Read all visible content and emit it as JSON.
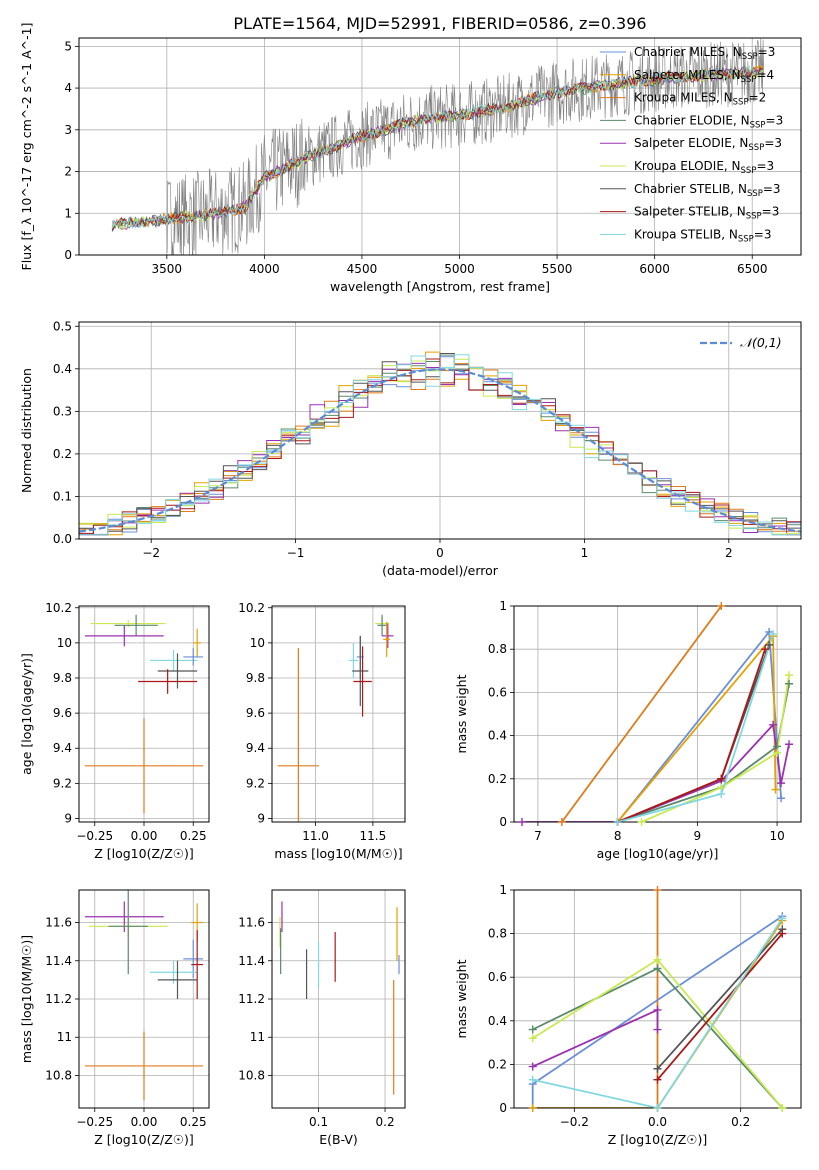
{
  "title": "PLATE=1564, MJD=52991, FIBERID=0586, z=0.396",
  "colors": {
    "Chabrier MILES": "#6a8fd8",
    "Salpeter MILES": "#e6a000",
    "Kroupa MILES": "#e07b1a",
    "Chabrier ELODIE": "#5a8a6a",
    "Salpeter ELODIE": "#9b30b0",
    "Kroupa ELODIE": "#c8ea50",
    "Chabrier STELIB": "#555555",
    "Salpeter STELIB": "#aa1818",
    "Kroupa STELIB": "#80d8e0",
    "data": "#808080",
    "gauss": "#5a8ad8"
  },
  "chart_data": [
    {
      "type": "line",
      "xlabel": "wavelength [Angstrom, rest frame]",
      "ylabel": "Flux [f_λ 10^-17 erg cm^-2 s^-1 A^-1]",
      "xlim": [
        3050,
        6750
      ],
      "ylim": [
        0,
        5.2
      ],
      "xticks": [
        3500,
        4000,
        4500,
        5000,
        5500,
        6000,
        6500
      ],
      "yticks": [
        0,
        1,
        2,
        3,
        4,
        5
      ],
      "legend_position": "upper-right",
      "legend": [
        {
          "model": "Chabrier MILES",
          "label": "Chabrier MILES, N",
          "sub": "SSP",
          "eq": "=3"
        },
        {
          "model": "Salpeter MILES",
          "label": "Salpeter MILES, N",
          "sub": "SSP",
          "eq": "=4"
        },
        {
          "model": "Kroupa MILES",
          "label": "Kroupa MILES, N",
          "sub": "SSP",
          "eq": "=2"
        },
        {
          "model": "Chabrier ELODIE",
          "label": "Chabrier ELODIE, N",
          "sub": "SSP",
          "eq": "=3"
        },
        {
          "model": "Salpeter ELODIE",
          "label": "Salpeter ELODIE, N",
          "sub": "SSP",
          "eq": "=3"
        },
        {
          "model": "Kroupa ELODIE",
          "label": "Kroupa ELODIE, N",
          "sub": "SSP",
          "eq": "=3"
        },
        {
          "model": "Chabrier STELIB",
          "label": "Chabrier STELIB, N",
          "sub": "SSP",
          "eq": "=3"
        },
        {
          "model": "Salpeter STELIB",
          "label": "Salpeter STELIB, N",
          "sub": "SSP",
          "eq": "=3"
        },
        {
          "model": "Kroupa STELIB",
          "label": "Kroupa STELIB, N",
          "sub": "SSP",
          "eq": "=3"
        }
      ],
      "data_x_range": [
        3220,
        6560
      ],
      "continuum": [
        [
          3220,
          0.72
        ],
        [
          3500,
          0.85
        ],
        [
          3700,
          0.95
        ],
        [
          3900,
          1.15
        ],
        [
          4000,
          1.85
        ],
        [
          4200,
          2.3
        ],
        [
          4500,
          2.85
        ],
        [
          4800,
          3.25
        ],
        [
          5000,
          3.35
        ],
        [
          5200,
          3.5
        ],
        [
          5500,
          3.9
        ],
        [
          5800,
          4.1
        ],
        [
          6000,
          4.2
        ],
        [
          6200,
          4.3
        ],
        [
          6560,
          4.4
        ]
      ]
    },
    {
      "type": "step",
      "xlabel": "(data-model)/error",
      "ylabel": "Normed distribution",
      "xlim": [
        -2.5,
        2.5
      ],
      "ylim": [
        0,
        0.51
      ],
      "xticks": [
        -2,
        -1,
        0,
        1,
        2
      ],
      "xticklabels": [
        "−2",
        "−1",
        "0",
        "1",
        "2"
      ],
      "yticks": [
        0.0,
        0.1,
        0.2,
        0.3,
        0.4,
        0.5
      ],
      "yticklabels": [
        "0.0",
        "0.1",
        "0.2",
        "0.3",
        "0.4",
        "0.5"
      ],
      "bin_width": 0.1,
      "legend": "𝒩(0,1)",
      "histogram_base": [
        0.03,
        0.032,
        0.035,
        0.04,
        0.045,
        0.05,
        0.06,
        0.07,
        0.085,
        0.1,
        0.12,
        0.13,
        0.145,
        0.16,
        0.17,
        0.19,
        0.21,
        0.24,
        0.26,
        0.28,
        0.3,
        0.33,
        0.36,
        0.35,
        0.33,
        0.36,
        0.35,
        0.33,
        0.4,
        0.37,
        0.38,
        0.37,
        0.39,
        0.4,
        0.37,
        0.38,
        0.36,
        0.35,
        0.33,
        0.36,
        0.32,
        0.3,
        0.28,
        0.25,
        0.22,
        0.21,
        0.19,
        0.17,
        0.155,
        0.14,
        0.12,
        0.1,
        0.085,
        0.075,
        0.06,
        0.05,
        0.045,
        0.04,
        0.04,
        0.035,
        0.03,
        0.03,
        0.03,
        0.03,
        0.03,
        0.03,
        0.03,
        0.03,
        0.03,
        0.03,
        0.03,
        0.03,
        0.03,
        0.03,
        0.03,
        0.03,
        0.03,
        0.03,
        0.03,
        0.03,
        0.03,
        0.03,
        0.03,
        0.03,
        0.03,
        0.03,
        0.03,
        0.03,
        0.03,
        0.03,
        0.03,
        0.03,
        0.03,
        0.03,
        0.03,
        0.03,
        0.03,
        0.03,
        0.03,
        0.03
      ]
    },
    {
      "type": "errorbar",
      "xlabel": "Z [log10(Z/Z☉)]",
      "ylabel": "age [log10(age/yr)]",
      "xlim": [
        -0.33,
        0.33
      ],
      "ylim": [
        8.98,
        10.21
      ],
      "xticks": [
        -0.25,
        0.0,
        0.25
      ],
      "xticklabels": [
        "−0.25",
        "0.00",
        "0.25"
      ],
      "yticks": [
        9.0,
        9.2,
        9.4,
        9.6,
        9.8,
        10.0,
        10.2
      ],
      "points": [
        {
          "model": "Kroupa MILES",
          "x": 0.0,
          "xerr": 0.3,
          "y": 9.3,
          "yerr": 0.27
        },
        {
          "model": "Kroupa ELODIE",
          "x": -0.08,
          "xerr": 0.19,
          "y": 10.11,
          "yerr": 0.02
        },
        {
          "model": "Chabrier ELODIE",
          "x": -0.04,
          "xerr": 0.11,
          "y": 10.1,
          "yerr": 0.06
        },
        {
          "model": "Salpeter ELODIE",
          "x": -0.1,
          "xerr": 0.2,
          "y": 10.04,
          "yerr": 0.06
        },
        {
          "model": "Salpeter MILES",
          "x": 0.27,
          "xerr": 0.02,
          "y": 10.0,
          "yerr": 0.08
        },
        {
          "model": "Kroupa STELIB",
          "x": 0.15,
          "xerr": 0.12,
          "y": 9.9,
          "yerr": 0.06
        },
        {
          "model": "Chabrier MILES",
          "x": 0.25,
          "xerr": 0.05,
          "y": 9.92,
          "yerr": 0.05
        },
        {
          "model": "Chabrier STELIB",
          "x": 0.17,
          "xerr": 0.1,
          "y": 9.84,
          "yerr": 0.1
        },
        {
          "model": "Salpeter STELIB",
          "x": 0.12,
          "xerr": 0.15,
          "y": 9.78,
          "yerr": 0.07
        }
      ]
    },
    {
      "type": "errorbar",
      "xlabel": "mass [log10(M/M☉)]",
      "ylabel": "",
      "xlim": [
        10.62,
        11.78
      ],
      "ylim": [
        8.98,
        10.21
      ],
      "xticks": [
        11.0,
        11.5
      ],
      "xticklabels": [
        "11.0",
        "11.5"
      ],
      "yticks": [
        9.0,
        9.2,
        9.4,
        9.6,
        9.8,
        10.0,
        10.2
      ],
      "points": [
        {
          "model": "Kroupa MILES",
          "x": 10.85,
          "xerr": 0.18,
          "y": 9.3,
          "yerr": 0.67
        },
        {
          "model": "Kroupa ELODIE",
          "x": 11.58,
          "xerr": 0.06,
          "y": 10.11,
          "yerr": 0.03
        },
        {
          "model": "Chabrier ELODIE",
          "x": 11.58,
          "xerr": 0.04,
          "y": 10.1,
          "yerr": 0.06
        },
        {
          "model": "Salpeter ELODIE",
          "x": 11.63,
          "xerr": 0.05,
          "y": 10.04,
          "yerr": 0.07
        },
        {
          "model": "Salpeter MILES",
          "x": 11.62,
          "xerr": 0.03,
          "y": 10.02,
          "yerr": 0.1
        },
        {
          "model": "Kroupa STELIB",
          "x": 11.33,
          "xerr": 0.04,
          "y": 9.9,
          "yerr": 0.1
        },
        {
          "model": "Chabrier MILES",
          "x": 11.39,
          "xerr": 0.03,
          "y": 9.92,
          "yerr": 0.12
        },
        {
          "model": "Chabrier STELIB",
          "x": 11.39,
          "xerr": 0.07,
          "y": 9.84,
          "yerr": 0.2
        },
        {
          "model": "Salpeter STELIB",
          "x": 11.41,
          "xerr": 0.08,
          "y": 9.78,
          "yerr": 0.2
        }
      ]
    },
    {
      "type": "line",
      "xlabel": "age [log10(age/yr)]",
      "ylabel": "mass weight",
      "xlim": [
        6.7,
        10.3
      ],
      "ylim": [
        0.0,
        1.0
      ],
      "xticks": [
        7,
        8,
        9,
        10
      ],
      "yticks": [
        0.0,
        0.2,
        0.4,
        0.6,
        0.8,
        1.0
      ],
      "series": [
        {
          "model": "Kroupa MILES",
          "x": [
            7.3,
            9.3
          ],
          "y": [
            0.0,
            1.0
          ]
        },
        {
          "model": "Chabrier MILES",
          "x": [
            8.0,
            9.9,
            10.05
          ],
          "y": [
            0.0,
            0.88,
            0.11
          ]
        },
        {
          "model": "Salpeter MILES",
          "x": [
            8.0,
            9.95,
            9.98
          ],
          "y": [
            0.0,
            0.86,
            0.15
          ]
        },
        {
          "model": "Chabrier ELODIE",
          "x": [
            8.0,
            9.3,
            10.0,
            10.15
          ],
          "y": [
            0.0,
            0.16,
            0.35,
            0.64
          ]
        },
        {
          "model": "Salpeter ELODIE",
          "x": [
            6.8,
            8.0,
            9.3,
            9.95,
            10.05,
            10.15
          ],
          "y": [
            0.0,
            0.0,
            0.19,
            0.45,
            0.18,
            0.36
          ]
        },
        {
          "model": "Kroupa ELODIE",
          "x": [
            8.3,
            9.3,
            10.0,
            10.15
          ],
          "y": [
            0.0,
            0.16,
            0.32,
            0.68
          ]
        },
        {
          "model": "Chabrier STELIB",
          "x": [
            8.0,
            9.3,
            9.9
          ],
          "y": [
            0.0,
            0.2,
            0.82
          ]
        },
        {
          "model": "Salpeter STELIB",
          "x": [
            8.0,
            9.3,
            9.85
          ],
          "y": [
            0.0,
            0.2,
            0.8
          ]
        },
        {
          "model": "Kroupa STELIB",
          "x": [
            8.0,
            9.3,
            9.95
          ],
          "y": [
            0.0,
            0.13,
            0.87
          ]
        }
      ]
    },
    {
      "type": "errorbar",
      "xlabel": "Z [log10(Z/Z☉)]",
      "ylabel": "mass [log10(M/M☉)]",
      "xlim": [
        -0.33,
        0.33
      ],
      "ylim": [
        10.63,
        11.77
      ],
      "xticks": [
        -0.25,
        0.0,
        0.25
      ],
      "xticklabels": [
        "−0.25",
        "0.00",
        "0.25"
      ],
      "yticks": [
        10.8,
        11.0,
        11.2,
        11.4,
        11.6
      ],
      "points": [
        {
          "model": "Kroupa MILES",
          "x": 0.0,
          "xerr": 0.3,
          "y": 10.85,
          "yerr": 0.18
        },
        {
          "model": "Salpeter ELODIE",
          "x": -0.1,
          "xerr": 0.2,
          "y": 11.63,
          "yerr": 0.08
        },
        {
          "model": "Kroupa ELODIE",
          "x": -0.08,
          "xerr": 0.2,
          "y": 11.58,
          "yerr": 0.06
        },
        {
          "model": "Chabrier ELODIE",
          "x": -0.08,
          "xerr": 0.1,
          "y": 11.58,
          "yerr": 0.25
        },
        {
          "model": "Salpeter MILES",
          "x": 0.27,
          "xerr": 0.03,
          "y": 11.6,
          "yerr": 0.1
        },
        {
          "model": "Chabrier MILES",
          "x": 0.25,
          "xerr": 0.05,
          "y": 11.41,
          "yerr": 0.1
        },
        {
          "model": "Kroupa STELIB",
          "x": 0.15,
          "xerr": 0.12,
          "y": 11.34,
          "yerr": 0.06
        },
        {
          "model": "Chabrier STELIB",
          "x": 0.17,
          "xerr": 0.1,
          "y": 11.3,
          "yerr": 0.1
        },
        {
          "model": "Salpeter STELIB",
          "x": 0.27,
          "xerr": 0.03,
          "y": 11.38,
          "yerr": 0.18
        }
      ]
    },
    {
      "type": "errorbar",
      "xlabel": "E(B-V)",
      "ylabel": "",
      "xlim": [
        0.03,
        0.23
      ],
      "ylim": [
        10.63,
        11.77
      ],
      "xticks": [
        0.1,
        0.2
      ],
      "xticklabels": [
        "0.1",
        "0.2"
      ],
      "yticks": [
        10.8,
        11.0,
        11.2,
        11.4,
        11.6
      ],
      "points": [
        {
          "model": "Salpeter ELODIE",
          "x": 0.045,
          "yerr": 0.08,
          "y": 11.63
        },
        {
          "model": "Kroupa ELODIE",
          "x": 0.042,
          "yerr": 0.08,
          "y": 11.55
        },
        {
          "model": "Chabrier ELODIE",
          "x": 0.043,
          "yerr": 0.12,
          "y": 11.45
        },
        {
          "model": "Chabrier STELIB",
          "x": 0.082,
          "yerr": 0.13,
          "y": 11.33
        },
        {
          "model": "Kroupa STELIB",
          "x": 0.1,
          "yerr": 0.12,
          "y": 11.38
        },
        {
          "model": "Salpeter STELIB",
          "x": 0.125,
          "yerr": 0.13,
          "y": 11.42
        },
        {
          "model": "Kroupa MILES",
          "x": 0.213,
          "yerr": 0.3,
          "y": 11.0
        },
        {
          "model": "Salpeter MILES",
          "x": 0.218,
          "yerr": 0.14,
          "y": 11.54
        },
        {
          "model": "Chabrier MILES",
          "x": 0.221,
          "yerr": 0.05,
          "y": 11.38
        }
      ]
    },
    {
      "type": "line",
      "xlabel": "Z [log10(Z/Z☉)]",
      "ylabel": "mass weight",
      "xlim": [
        -0.345,
        0.345
      ],
      "ylim": [
        0.0,
        1.0
      ],
      "xticks": [
        -0.2,
        0.0,
        0.2
      ],
      "xticklabels": [
        "−0.2",
        "0.0",
        "0.2"
      ],
      "yticks": [
        0.0,
        0.2,
        0.4,
        0.6,
        0.8,
        1.0
      ],
      "series": [
        {
          "model": "Kroupa MILES",
          "x": [
            0.0,
            0.0
          ],
          "y": [
            0.0,
            1.0
          ]
        },
        {
          "model": "Chabrier MILES",
          "x": [
            -0.3,
            -0.3,
            0.3
          ],
          "y": [
            0.0,
            0.11,
            0.88
          ]
        },
        {
          "model": "Salpeter MILES",
          "x": [
            -0.3,
            0.0,
            0.3
          ],
          "y": [
            0.0,
            0.0,
            0.86
          ]
        },
        {
          "model": "Chabrier ELODIE",
          "x": [
            -0.3,
            0.0,
            0.3
          ],
          "y": [
            0.36,
            0.64,
            0.0
          ]
        },
        {
          "model": "Salpeter ELODIE",
          "x": [
            -0.3,
            0.0,
            0.0
          ],
          "y": [
            0.19,
            0.45,
            0.36
          ]
        },
        {
          "model": "Kroupa ELODIE",
          "x": [
            -0.3,
            0.0,
            0.3
          ],
          "y": [
            0.32,
            0.68,
            0.0
          ]
        },
        {
          "model": "Chabrier STELIB",
          "x": [
            0.0,
            0.3
          ],
          "y": [
            0.18,
            0.82
          ]
        },
        {
          "model": "Salpeter STELIB",
          "x": [
            0.0,
            0.3
          ],
          "y": [
            0.13,
            0.8
          ]
        },
        {
          "model": "Kroupa STELIB",
          "x": [
            -0.3,
            0.0,
            0.3
          ],
          "y": [
            0.13,
            0.0,
            0.87
          ]
        }
      ]
    }
  ]
}
